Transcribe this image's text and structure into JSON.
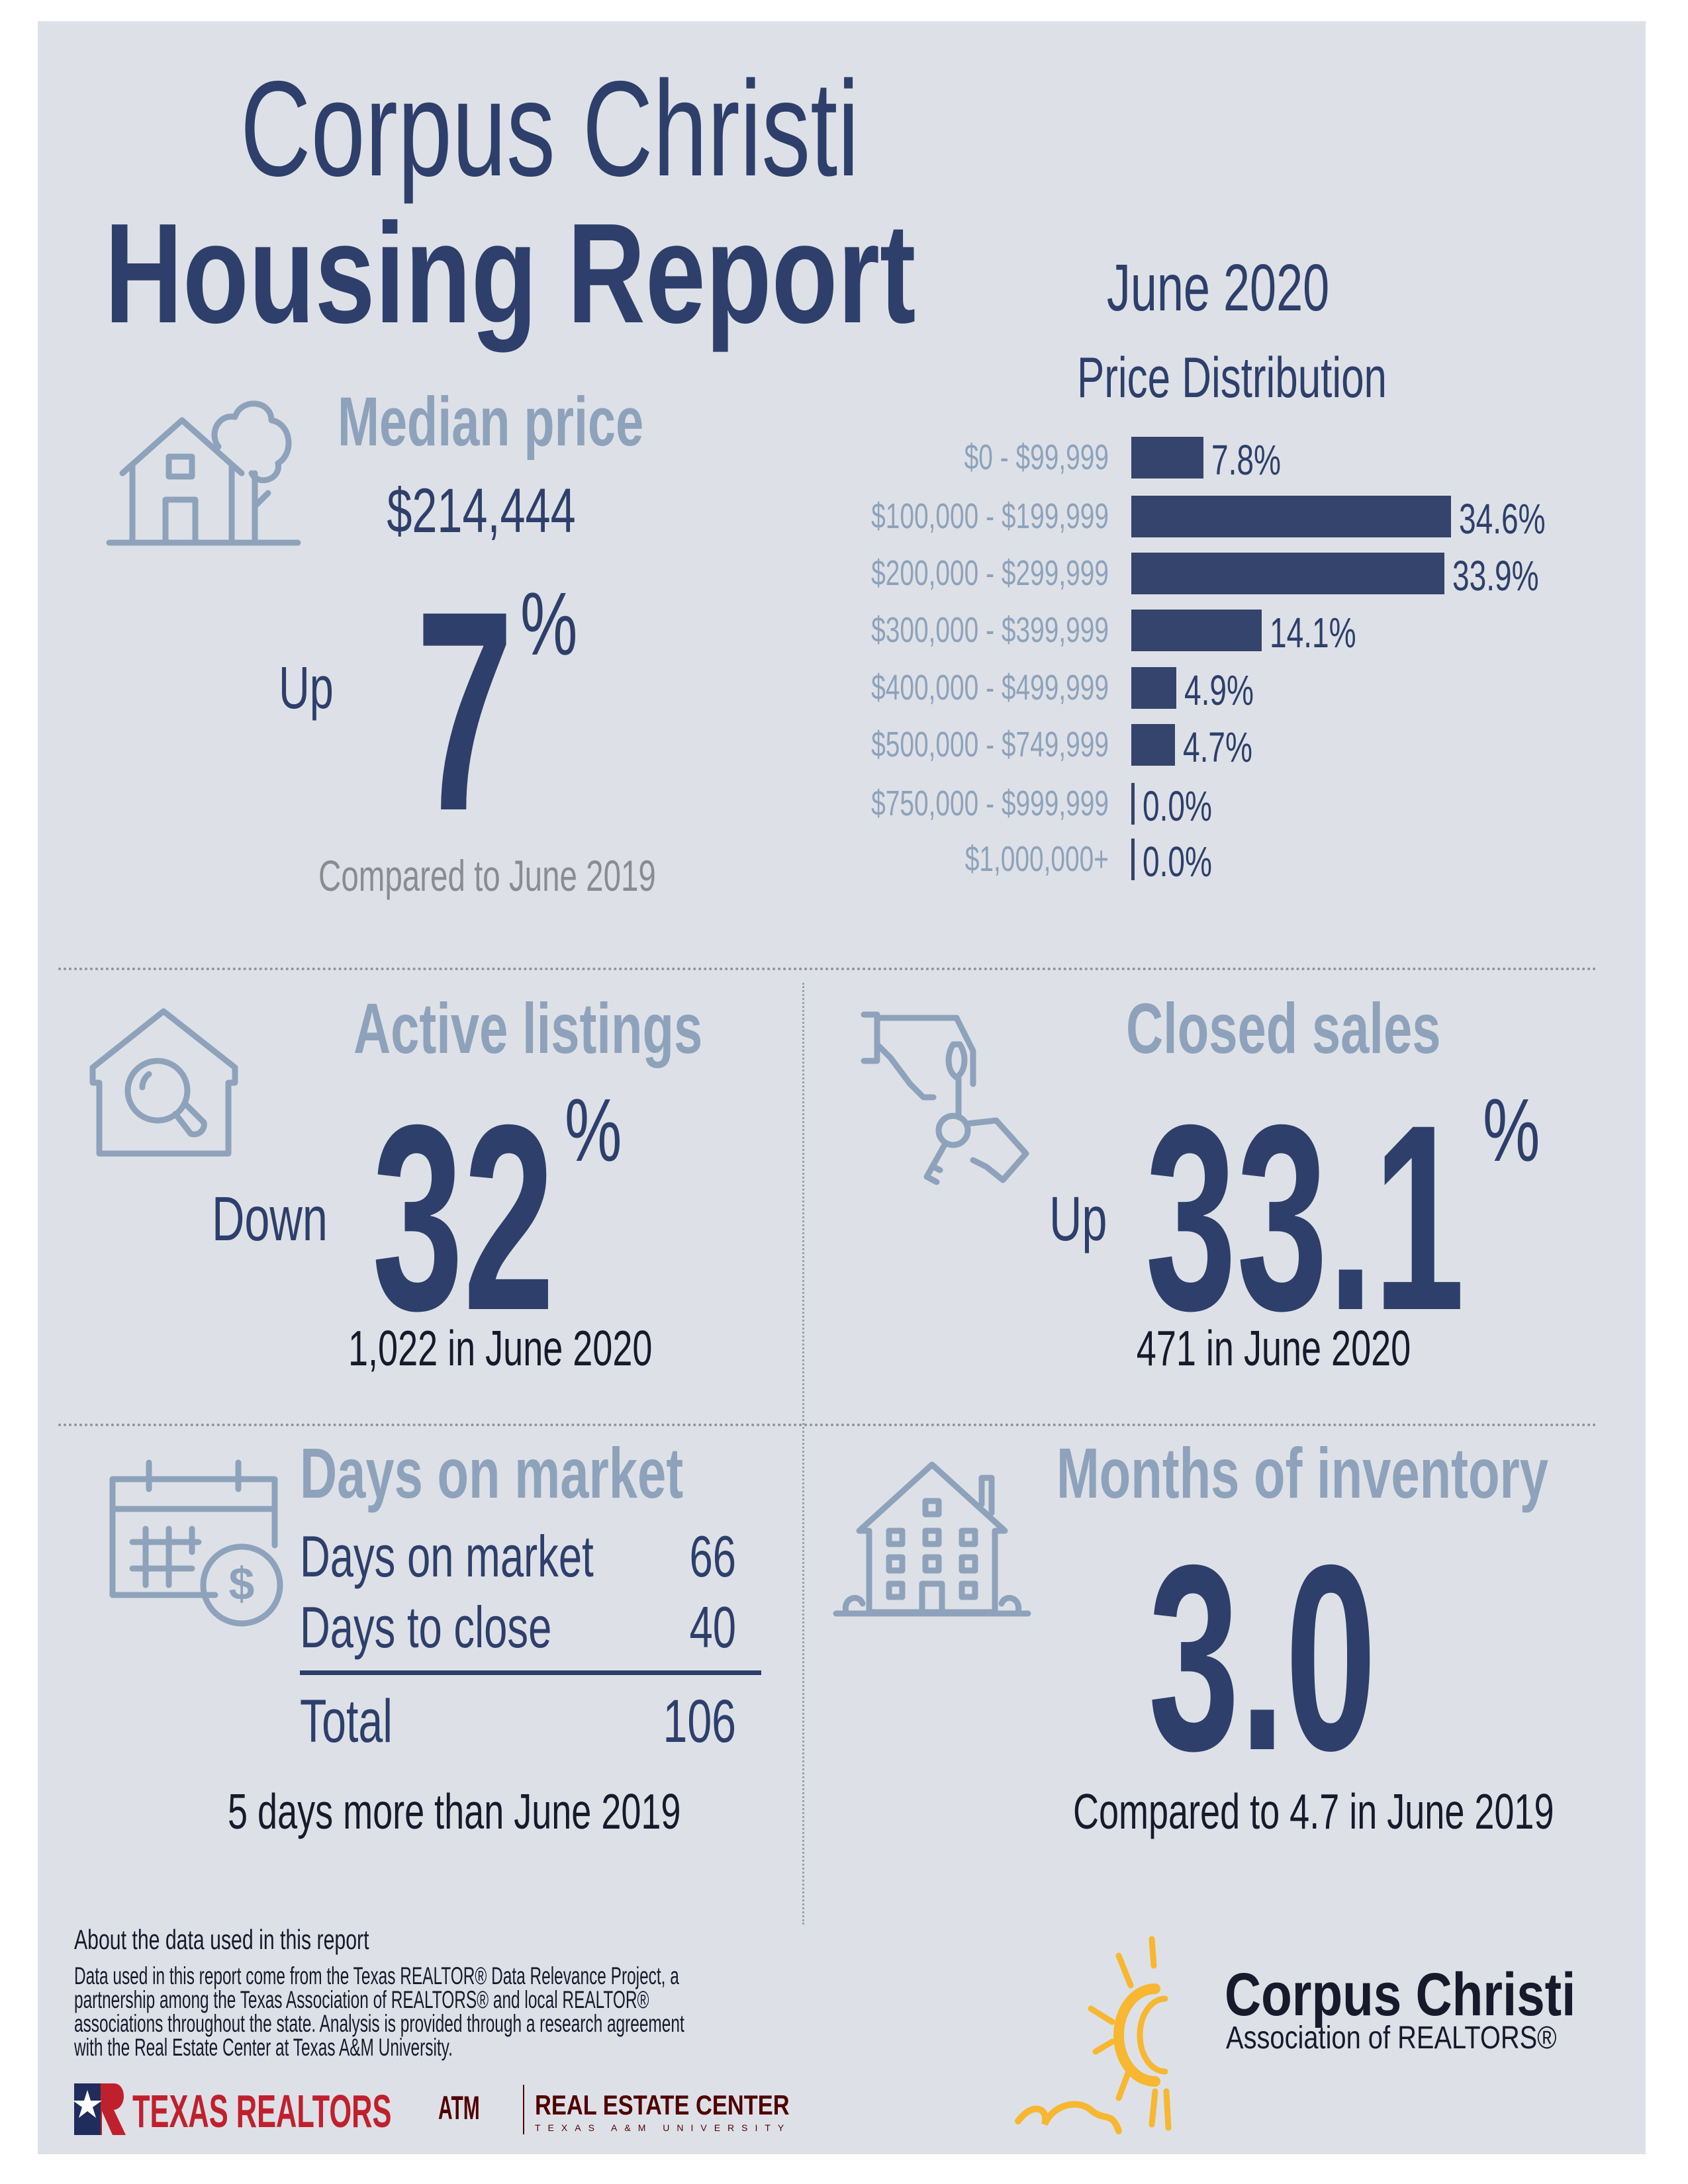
{
  "header": {
    "title_line1": "Corpus Christi",
    "title_line2": "Housing Report",
    "period": "June 2020"
  },
  "median_price": {
    "heading": "Median price",
    "value": "$214,444",
    "direction": "Up",
    "change": "7",
    "percent_sign": "%",
    "comparison": "Compared to June 2019",
    "icon": "house-tree-icon"
  },
  "chart_data": {
    "type": "bar",
    "orientation": "horizontal",
    "title": "Price Distribution",
    "categories": [
      "$0 - $99,999",
      "$100,000 - $199,999",
      "$200,000 - $299,999",
      "$300,000 - $399,999",
      "$400,000 - $499,999",
      "$500,000 - $749,999",
      "$750,000 - $999,999",
      "$1,000,000+"
    ],
    "values": [
      7.8,
      34.6,
      33.9,
      14.1,
      4.9,
      4.7,
      0.0,
      0.0
    ],
    "data_labels": [
      "7.8%",
      "34.6%",
      "33.9%",
      "14.1%",
      "4.9%",
      "4.7%",
      "0.0%",
      "0.0%"
    ],
    "unit": "%",
    "bar_color": "#34446c",
    "grid": false
  },
  "active_listings": {
    "heading": "Active listings",
    "direction": "Down",
    "change": "32",
    "percent_sign": "%",
    "detail": "1,022 in June 2020",
    "icon": "house-search-icon"
  },
  "closed_sales": {
    "heading": "Closed sales",
    "direction": "Up",
    "change": "33.1",
    "percent_sign": "%",
    "detail": "471 in June 2020",
    "icon": "hand-keys-icon"
  },
  "days_on_market": {
    "heading": "Days on market",
    "rows": [
      {
        "label": "Days on market",
        "value": "66"
      },
      {
        "label": "Days to close",
        "value": "40"
      }
    ],
    "total_label": "Total",
    "total_value": "106",
    "comparison": "5 days more than June 2019",
    "icon": "calendar-dollar-icon"
  },
  "months_inventory": {
    "heading": "Months of inventory",
    "value": "3.0",
    "comparison": "Compared to 4.7 in June 2019",
    "icon": "apartment-house-icon"
  },
  "footer": {
    "about_heading": "About the data used in this report",
    "about_lines": [
      "Data used in this report come from the Texas REALTOR® Data Relevance Project, a",
      "partnership among the Texas Association of REALTORS® and local REALTOR®",
      "associations throughout the state. Analysis is provided through a research agreement",
      "with the Real Estate Center at Texas A&M University."
    ],
    "texas_realtors_logo": "TEXAS REALTORS",
    "atm_logo": "ATM",
    "rec_logo": "REAL ESTATE CENTER",
    "rec_sub": "TEXAS A&M UNIVERSITY",
    "ccar_logo_line1": "Corpus Christi",
    "ccar_logo_line2": "Association of REALTORS®"
  },
  "colors": {
    "navy": "#2e3f6b",
    "light_blue_gray": "#8ea2bb",
    "panel": "#dde1e7",
    "logo_red": "#c0202e",
    "logo_sun": "#f7b731"
  }
}
